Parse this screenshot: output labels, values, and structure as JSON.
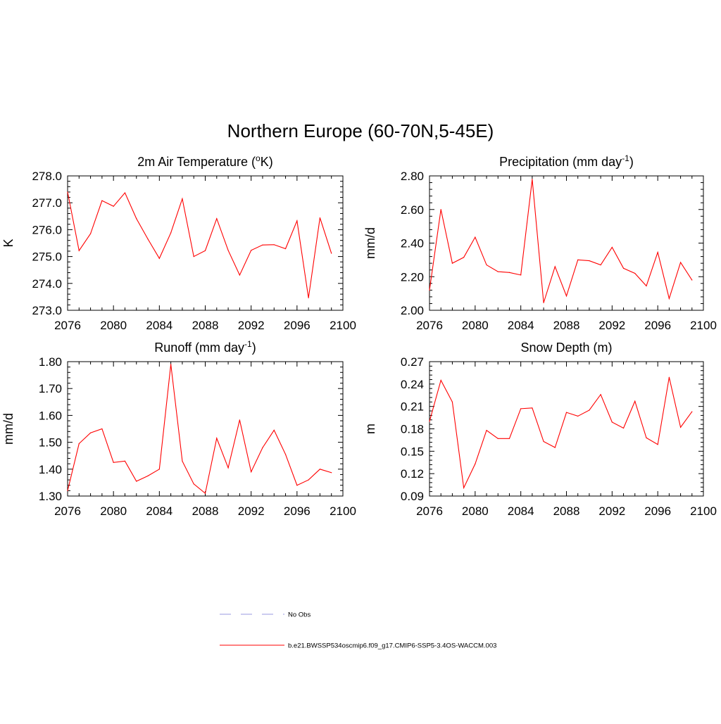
{
  "title": "Northern Europe (60-70N,5-45E)",
  "legend": {
    "items": [
      {
        "label": "No Obs",
        "color": "#9a9ae0",
        "dashed": true
      },
      {
        "label": "b.e21.BWSSP534oscmip6.f09_g17.CMIP6-SSP5-3.4OS-WACCM.003",
        "color": "#ff0000",
        "dashed": false
      }
    ]
  },
  "chart_data": [
    {
      "type": "line",
      "title": "2m Air Temperature (",
      "title_sup": "o",
      "title_suffix": "K)",
      "ylabel": "K",
      "xlim": [
        2076,
        2100
      ],
      "ylim": [
        273.0,
        278.0
      ],
      "ytick_step": 1.0,
      "ytick_decimals": 1,
      "xticks": [
        2076,
        2080,
        2084,
        2088,
        2092,
        2096,
        2100
      ],
      "series": [
        {
          "color": "#ff0000",
          "x": [
            2076,
            2077,
            2078,
            2079,
            2080,
            2081,
            2082,
            2083,
            2084,
            2085,
            2086,
            2087,
            2088,
            2089,
            2090,
            2091,
            2092,
            2093,
            2094,
            2095,
            2096,
            2097,
            2098,
            2099
          ],
          "values": [
            277.4,
            275.22,
            275.85,
            277.08,
            276.87,
            277.37,
            276.41,
            275.65,
            274.93,
            275.88,
            277.15,
            275.0,
            275.22,
            276.41,
            275.23,
            274.31,
            275.23,
            275.43,
            275.44,
            275.29,
            276.33,
            273.46,
            276.44,
            275.12
          ]
        }
      ]
    },
    {
      "type": "line",
      "title": "Precipitation (mm day",
      "title_sup": "-1",
      "title_suffix": ")",
      "ylabel": "mm/d",
      "xlim": [
        2076,
        2100
      ],
      "ylim": [
        2.0,
        2.8
      ],
      "ytick_step": 0.2,
      "ytick_decimals": 2,
      "xticks": [
        2076,
        2080,
        2084,
        2088,
        2092,
        2096,
        2100
      ],
      "series": [
        {
          "color": "#ff0000",
          "x": [
            2076,
            2077,
            2078,
            2079,
            2080,
            2081,
            2082,
            2083,
            2084,
            2085,
            2086,
            2087,
            2088,
            2089,
            2090,
            2091,
            2092,
            2093,
            2094,
            2095,
            2096,
            2097,
            2098,
            2099
          ],
          "values": [
            2.12,
            2.6,
            2.28,
            2.315,
            2.435,
            2.27,
            2.23,
            2.225,
            2.21,
            2.78,
            2.045,
            2.26,
            2.085,
            2.3,
            2.295,
            2.27,
            2.375,
            2.25,
            2.22,
            2.145,
            2.345,
            2.07,
            2.285,
            2.18
          ]
        }
      ]
    },
    {
      "type": "line",
      "title": "Runoff (mm day",
      "title_sup": "-1",
      "title_suffix": ")",
      "ylabel": "mm/d",
      "xlim": [
        2076,
        2100
      ],
      "ylim": [
        1.3,
        1.8
      ],
      "ytick_step": 0.1,
      "ytick_decimals": 2,
      "xticks": [
        2076,
        2080,
        2084,
        2088,
        2092,
        2096,
        2100
      ],
      "series": [
        {
          "color": "#ff0000",
          "x": [
            2076,
            2077,
            2078,
            2079,
            2080,
            2081,
            2082,
            2083,
            2084,
            2085,
            2086,
            2087,
            2088,
            2089,
            2090,
            2091,
            2092,
            2093,
            2094,
            2095,
            2096,
            2097,
            2098,
            2099
          ],
          "values": [
            1.32,
            1.495,
            1.535,
            1.55,
            1.425,
            1.43,
            1.355,
            1.375,
            1.4,
            1.79,
            1.43,
            1.345,
            1.31,
            1.515,
            1.405,
            1.583,
            1.39,
            1.48,
            1.545,
            1.455,
            1.34,
            1.36,
            1.4,
            1.387
          ]
        }
      ]
    },
    {
      "type": "line",
      "title": "Snow Depth (m)",
      "title_sup": "",
      "title_suffix": "",
      "ylabel": "m",
      "xlim": [
        2076,
        2100
      ],
      "ylim": [
        0.09,
        0.27
      ],
      "ytick_step": 0.03,
      "ytick_decimals": 2,
      "xticks": [
        2076,
        2080,
        2084,
        2088,
        2092,
        2096,
        2100
      ],
      "series": [
        {
          "color": "#ff0000",
          "x": [
            2076,
            2077,
            2078,
            2079,
            2080,
            2081,
            2082,
            2083,
            2084,
            2085,
            2086,
            2087,
            2088,
            2089,
            2090,
            2091,
            2092,
            2093,
            2094,
            2095,
            2096,
            2097,
            2098,
            2099
          ],
          "values": [
            0.19,
            0.245,
            0.216,
            0.101,
            0.133,
            0.178,
            0.167,
            0.167,
            0.207,
            0.208,
            0.163,
            0.155,
            0.202,
            0.197,
            0.205,
            0.226,
            0.189,
            0.181,
            0.217,
            0.168,
            0.159,
            0.249,
            0.182,
            0.203
          ]
        }
      ]
    }
  ]
}
